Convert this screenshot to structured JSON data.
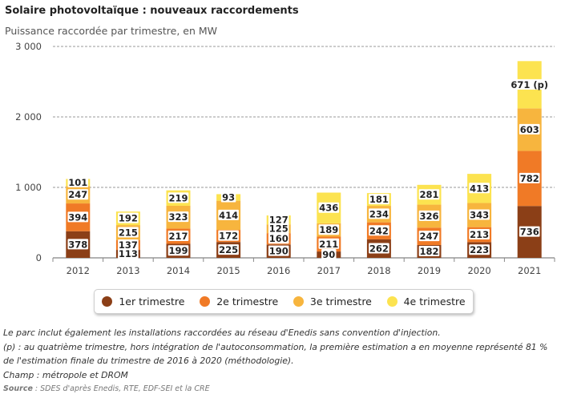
{
  "header": {
    "title": "Solaire photovoltaïque : nouveaux raccordements",
    "subtitle": "Puissance raccordée par trimestre, en MW"
  },
  "chart_data": {
    "type": "bar",
    "stacked": true,
    "categories": [
      "2012",
      "2013",
      "2014",
      "2015",
      "2016",
      "2017",
      "2018",
      "2019",
      "2020",
      "2021"
    ],
    "series": [
      {
        "name": "1er trimestre",
        "color": "#8b3f17",
        "values": [
          378,
          113,
          199,
          225,
          190,
          90,
          262,
          182,
          223,
          736
        ]
      },
      {
        "name": "2e trimestre",
        "color": "#f07a26",
        "values": [
          394,
          137,
          217,
          172,
          160,
          211,
          242,
          247,
          213,
          782
        ]
      },
      {
        "name": "3e trimestre",
        "color": "#f7b53e",
        "values": [
          247,
          215,
          323,
          414,
          125,
          189,
          234,
          326,
          343,
          603
        ]
      },
      {
        "name": "4e trimestre",
        "color": "#fce350",
        "values": [
          101,
          192,
          219,
          93,
          127,
          436,
          181,
          281,
          413,
          671
        ]
      }
    ],
    "labels_override": {
      "9": {
        "3": "671 (p)"
      }
    },
    "ylim": [
      0,
      3000
    ],
    "yticks": [
      0,
      1000,
      2000,
      3000
    ],
    "ytick_labels": [
      "0",
      "1 000",
      "2 000",
      "3 000"
    ],
    "grid": true,
    "legend_position": "bottom"
  },
  "legend": [
    {
      "label": "1er trimestre",
      "color": "#8b3f17"
    },
    {
      "label": "2e trimestre",
      "color": "#f07a26"
    },
    {
      "label": "3e trimestre",
      "color": "#f7b53e"
    },
    {
      "label": "4e trimestre",
      "color": "#fce350"
    }
  ],
  "notes": {
    "line1": "Le parc inclut également les installations raccordées au réseau d'Enedis sans convention d'injection.",
    "line2": "(p) : au quatrième trimestre, hors intégration de l'autoconsommation, la première estimation a en moyenne représenté 81 % de l'estimation finale du trimestre de 2016 à 2020 (méthodologie).",
    "line3": "Champ : métropole et DROM",
    "source_label": "Source",
    "source_text": " : SDES d'après Enedis, RTE, EDF-SEI et la CRE"
  }
}
